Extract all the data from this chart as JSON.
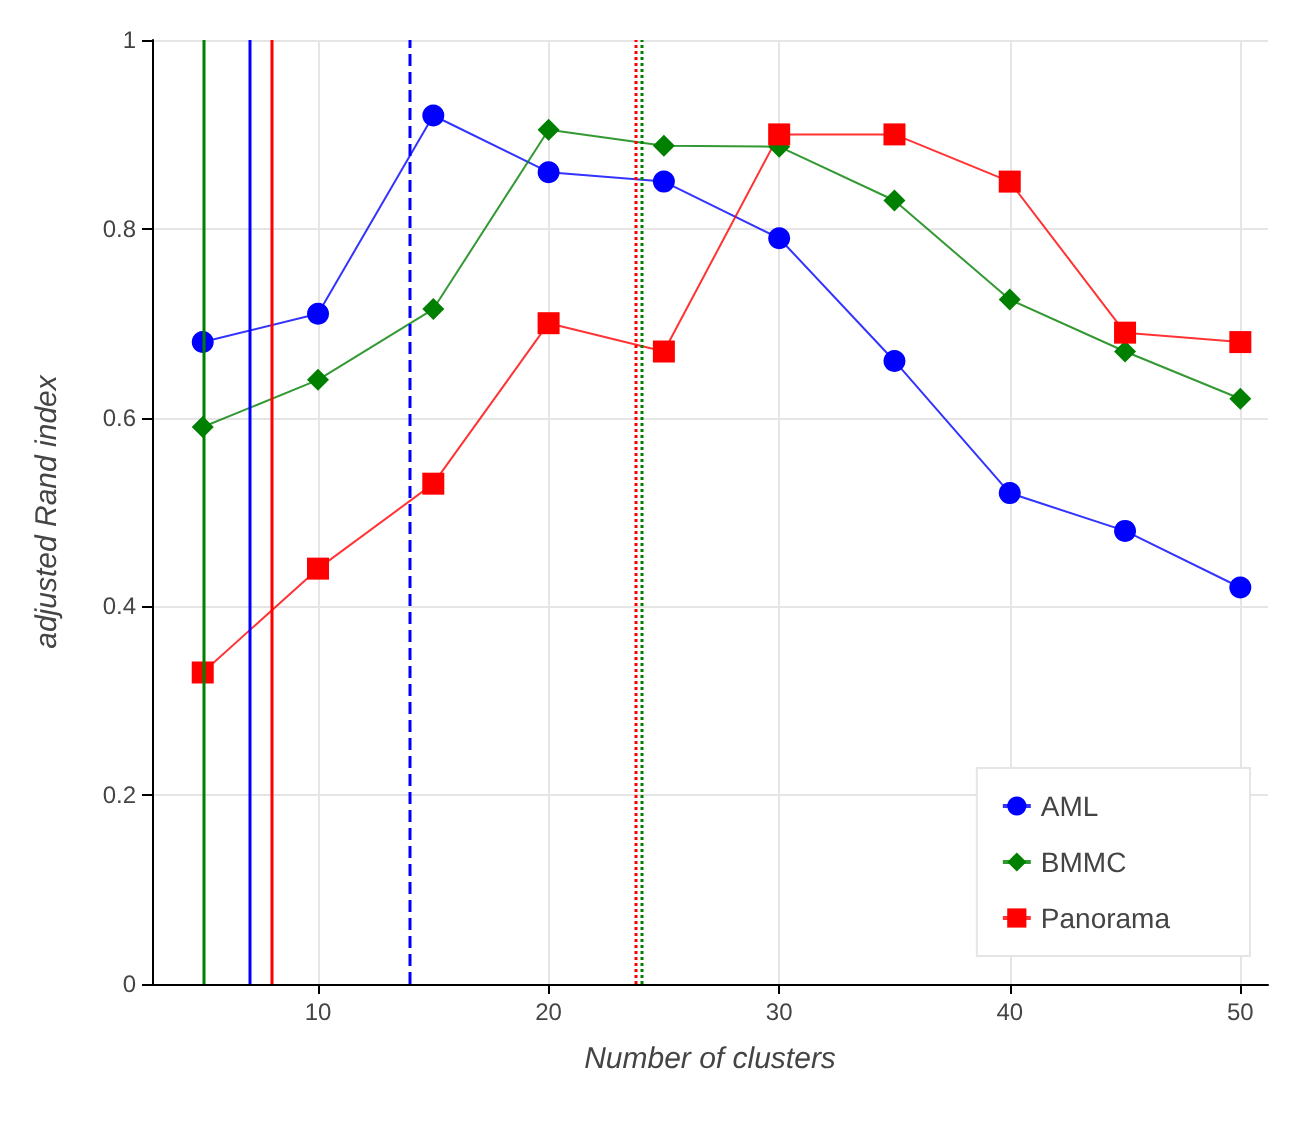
{
  "chart_data": {
    "type": "line",
    "xlabel": "Number of clusters",
    "ylabel": "adjusted Rand index",
    "x": [
      5,
      10,
      15,
      20,
      25,
      30,
      35,
      40,
      45,
      50
    ],
    "series": [
      {
        "name": "AML",
        "color": "#0000ff",
        "marker": "circle",
        "values": [
          0.68,
          0.71,
          0.92,
          0.86,
          0.85,
          0.79,
          0.66,
          0.52,
          0.48,
          0.42
        ]
      },
      {
        "name": "BMMC",
        "color": "#008000",
        "marker": "diamond",
        "values": [
          0.59,
          0.64,
          0.715,
          0.905,
          0.888,
          0.887,
          0.83,
          0.725,
          0.67,
          0.62
        ]
      },
      {
        "name": "Panorama",
        "color": "#ff0000",
        "marker": "square",
        "values": [
          0.33,
          0.44,
          0.53,
          0.7,
          0.67,
          0.9,
          0.9,
          0.85,
          0.69,
          0.68
        ]
      }
    ],
    "ref_lines": [
      {
        "axis": "x",
        "value": 5,
        "color": "#008000",
        "line_style": "solid"
      },
      {
        "axis": "x",
        "value": 7,
        "color": "#0000ff",
        "line_style": "solid"
      },
      {
        "axis": "x",
        "value": 8,
        "color": "#ff0000",
        "line_style": "solid"
      },
      {
        "axis": "x",
        "value": 14,
        "color": "#0000ff",
        "line_style": "dashed"
      },
      {
        "axis": "x",
        "value": 23.8,
        "color": "#ff0000",
        "line_style": "dotted"
      },
      {
        "axis": "x",
        "value": 24,
        "color": "#008000",
        "line_style": "dotted"
      }
    ],
    "xlim": [
      2.8,
      51.2
    ],
    "xticks": [
      10,
      20,
      30,
      40,
      50
    ],
    "ylim": [
      0,
      1
    ],
    "yticks": [
      0,
      0.2,
      0.4,
      0.6,
      0.8,
      1
    ],
    "grid": true,
    "legend": "bottom right"
  }
}
